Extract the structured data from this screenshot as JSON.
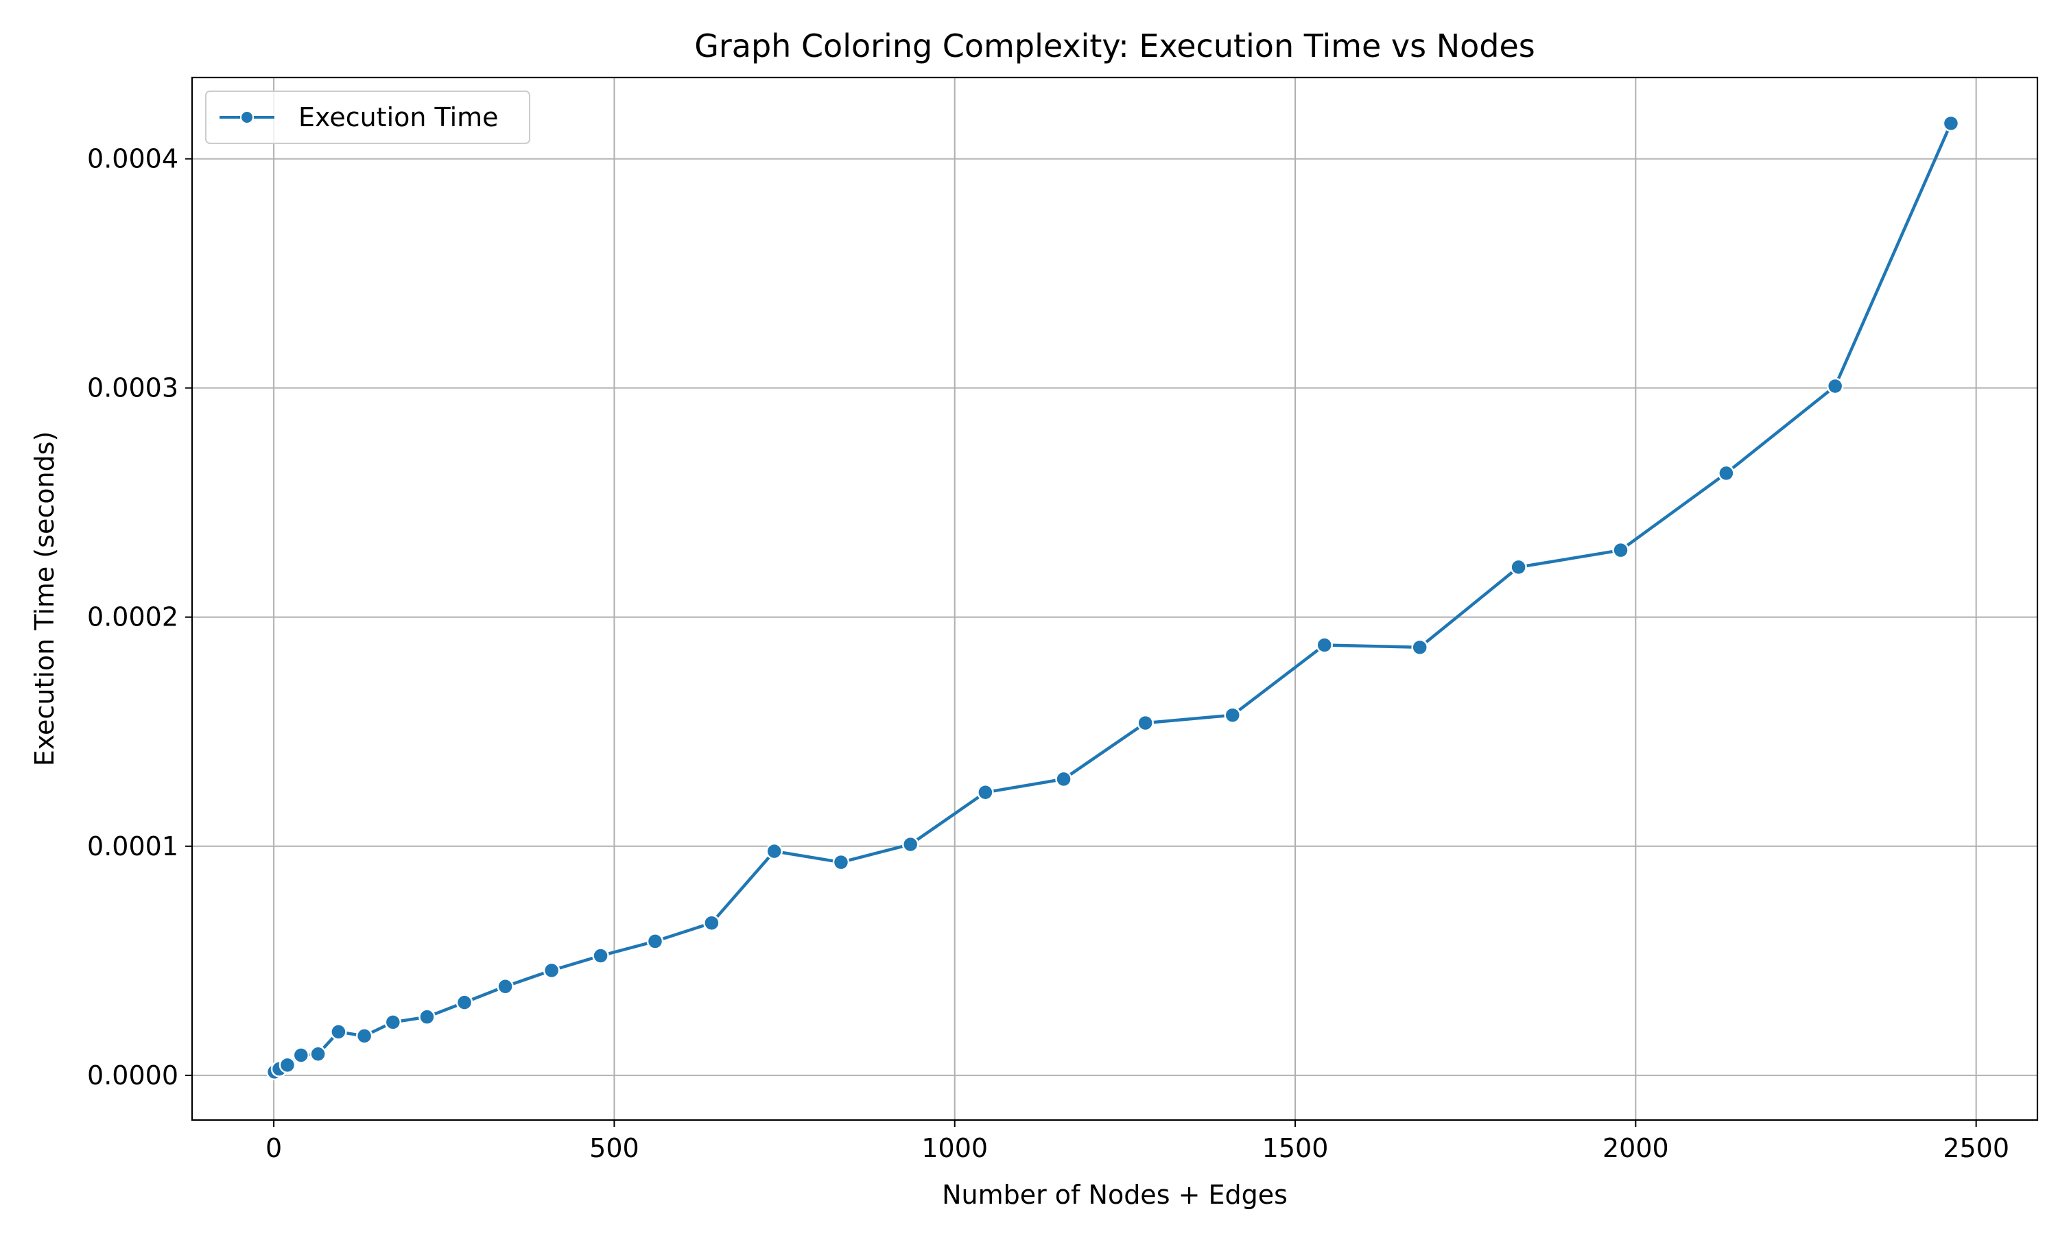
{
  "chart_data": {
    "type": "line",
    "title": "Graph Coloring Complexity: Execution Time vs Nodes",
    "xlabel": "Number of Nodes + Edges",
    "ylabel": "Execution Time (seconds)",
    "xlim": [
      -120,
      2590
    ],
    "ylim": [
      -1.95e-05,
      0.0004355
    ],
    "x_ticks": [
      0,
      500,
      1000,
      1500,
      2000,
      2500
    ],
    "x_tick_labels": [
      "0",
      "500",
      "1000",
      "1500",
      "2000",
      "2500"
    ],
    "y_ticks": [
      0,
      0.0001,
      0.0002,
      0.0003,
      0.0004
    ],
    "y_tick_labels": [
      "0.0000",
      "0.0001",
      "0.0002",
      "0.0003",
      "0.0004"
    ],
    "grid": true,
    "legend_position": "top-left",
    "series": [
      {
        "name": "Execution Time",
        "color": "#1f77b4",
        "marker": "circle",
        "x": [
          1,
          8,
          20,
          40,
          65,
          95,
          133,
          175,
          225,
          280,
          340,
          408,
          480,
          560,
          643,
          735,
          833,
          935,
          1045,
          1160,
          1280,
          1408,
          1543,
          1683,
          1828,
          1978,
          2133,
          2293,
          2463
        ],
        "values": [
          1.5e-06,
          2.8e-06,
          4.5e-06,
          8.8e-06,
          9.3e-06,
          1.9e-05,
          1.72e-05,
          2.32e-05,
          2.55e-05,
          3.18e-05,
          3.88e-05,
          4.58e-05,
          5.22e-05,
          5.85e-05,
          6.65e-05,
          9.78e-05,
          9.3e-05,
          0.0001008,
          0.0001235,
          0.0001293,
          0.0001538,
          0.0001572,
          0.0001878,
          0.0001868,
          0.0002218,
          0.0002292,
          0.0002628,
          0.0003008,
          0.0004155
        ]
      }
    ]
  }
}
